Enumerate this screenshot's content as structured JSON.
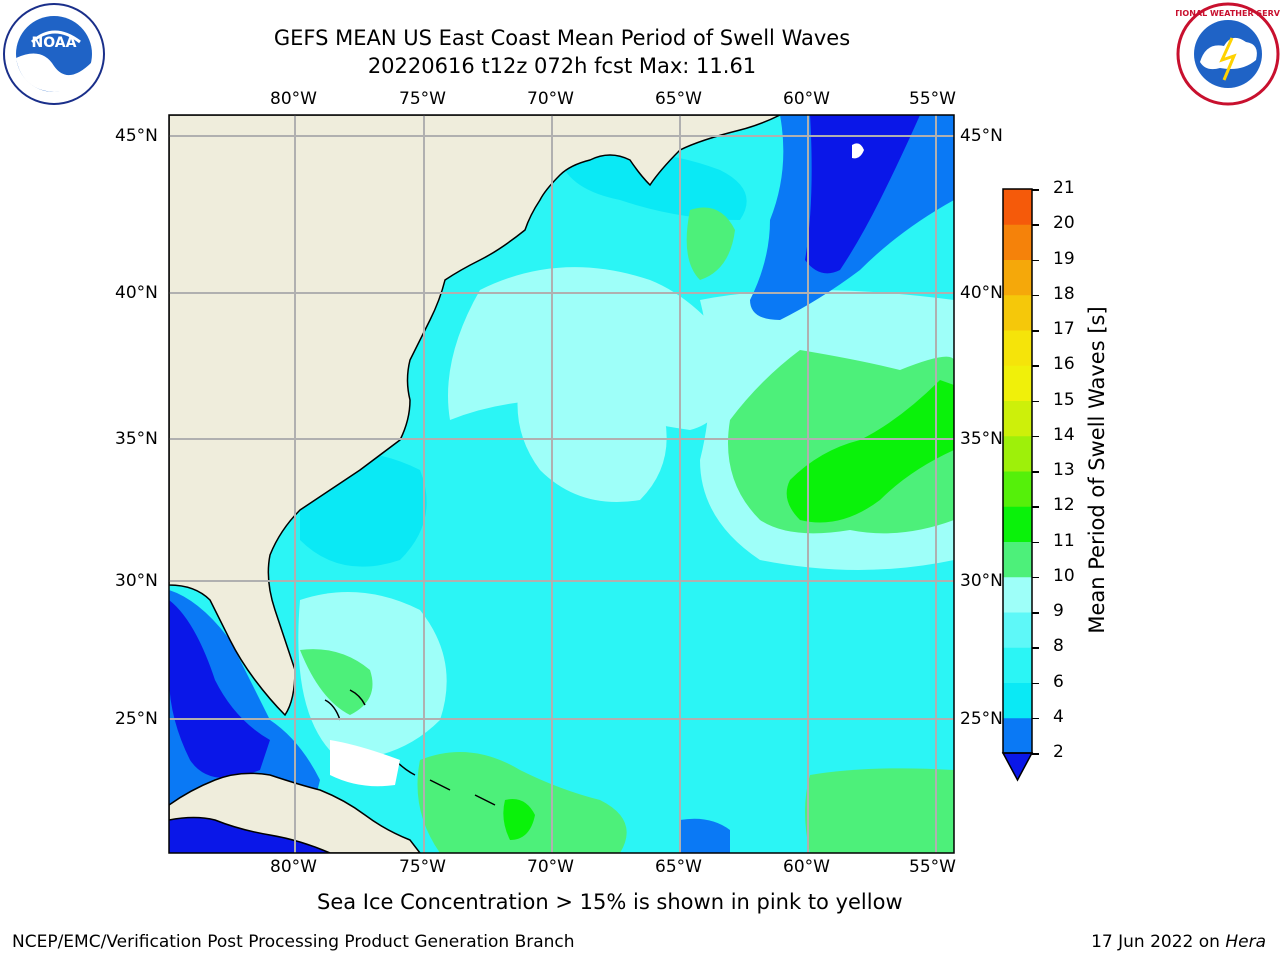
{
  "header": {
    "title_line1": "GEFS MEAN US East Coast Mean Period of Swell Waves",
    "title_line2": "20220616 t12z 072h fcst   Max: 11.61"
  },
  "map": {
    "lon_labels": [
      "80°W",
      "75°W",
      "70°W",
      "65°W",
      "60°W",
      "55°W"
    ],
    "lat_labels": [
      "45°N",
      "40°N",
      "35°N",
      "30°N",
      "25°N"
    ],
    "colors": {
      "land": "#efeddc",
      "deep_blue": "#0a17e8",
      "blue": "#0a79f5",
      "cyan": "#0ae9f5",
      "light_cyan": "#2bf5f5",
      "pale_cyan": "#9efff9",
      "light_green": "#4df07a",
      "green": "#0af20a",
      "grid": "#b0b0b0"
    }
  },
  "colorbar": {
    "label": "Mean Period of Swell Waves [s]",
    "ticks": [
      "2",
      "4",
      "6",
      "8",
      "9",
      "10",
      "11",
      "12",
      "13",
      "14",
      "15",
      "16",
      "17",
      "18",
      "19",
      "20",
      "21"
    ],
    "colors": [
      "#0a79f5",
      "#0ae9f5",
      "#2bf5f5",
      "#5ef8f8",
      "#9efff9",
      "#4df07a",
      "#0af20a",
      "#55f00a",
      "#9ef00a",
      "#cdf00a",
      "#f0f00a",
      "#f5e40a",
      "#f5c80a",
      "#f5a80a",
      "#f5820a",
      "#f55a0a",
      "#f51e0a",
      "#f50a0a"
    ],
    "extend_color": "#0a17e8"
  },
  "note": "Sea Ice Concentration > 15% is shown in pink to yellow",
  "footer": {
    "left": "NCEP/EMC/Verification Post Processing Product Generation Branch",
    "date": "17 Jun 2022 on ",
    "machine": "Hera"
  },
  "logos": {
    "noaa_text": "NOAA",
    "nws_text": "NATIONAL WEATHER SERVICE"
  }
}
